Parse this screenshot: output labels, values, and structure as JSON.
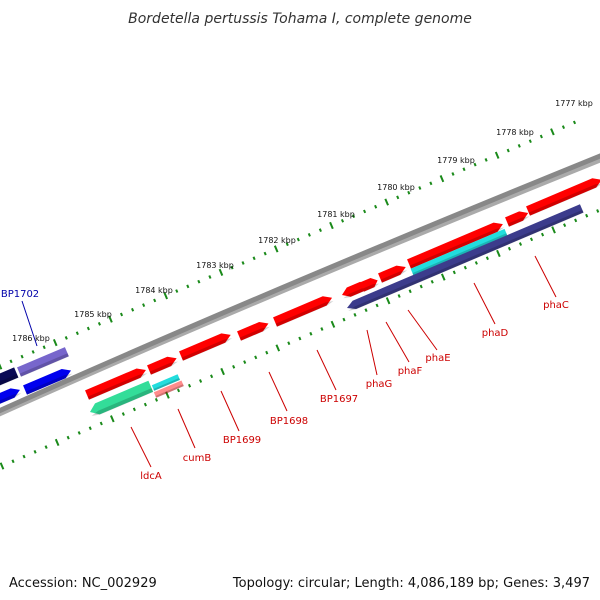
{
  "title": "Bordetella pertussis Tohama I, complete genome",
  "footer": {
    "accession": "Accession: NC_002929",
    "summary": "Topology: circular; Length: 4,086,189 bp; Genes: 3,497"
  },
  "colors": {
    "backbone": "#888888",
    "tick": "#1a8a1a",
    "gene_red": "#ff0000",
    "gene_dark_red": "#c00000",
    "cyan": "#22dddd",
    "navy": "#3c3c8c",
    "mint": "#33dd99",
    "blue": "#0000ee",
    "dark_navy": "#0a0a55",
    "lavender": "#7766cc",
    "label_red": "#cc0000",
    "label_blue": "#0000aa"
  },
  "scale_labels": [
    "1777 kbp",
    "1778 kbp",
    "1779 kbp",
    "1780 kbp",
    "1781 kbp",
    "1782 kbp",
    "1783 kbp",
    "1784 kbp",
    "1785 kbp",
    "1786 kbp"
  ],
  "gene_labels": [
    {
      "text": "BP1702",
      "color": "blue"
    },
    {
      "text": "phaC",
      "color": "red"
    },
    {
      "text": "phaD",
      "color": "red"
    },
    {
      "text": "phaE",
      "color": "red"
    },
    {
      "text": "phaF",
      "color": "red"
    },
    {
      "text": "phaG",
      "color": "red"
    },
    {
      "text": "BP1697",
      "color": "red"
    },
    {
      "text": "BP1698",
      "color": "red"
    },
    {
      "text": "BP1699",
      "color": "red"
    },
    {
      "text": "cumB",
      "color": "red"
    },
    {
      "text": "ldcA",
      "color": "red"
    }
  ]
}
